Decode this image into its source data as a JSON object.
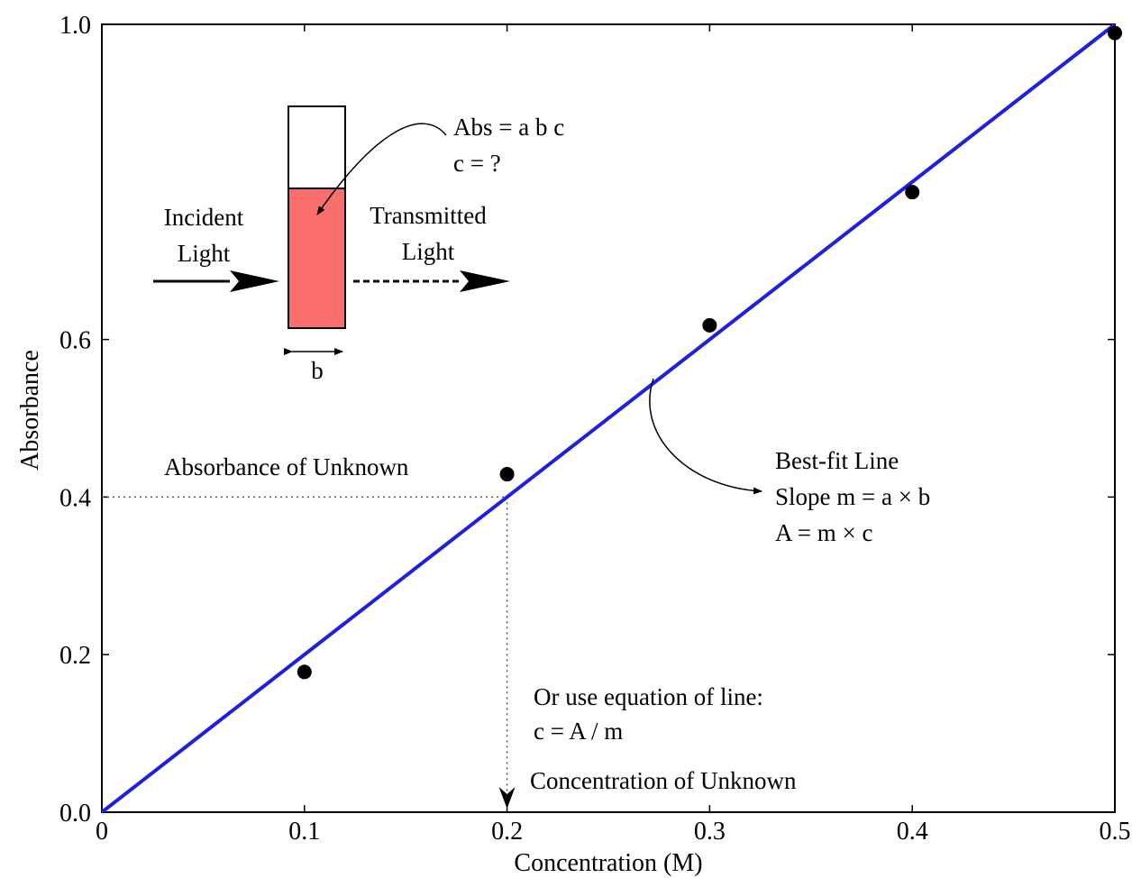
{
  "chart_data": {
    "type": "scatter",
    "x_label": "Concentration (M)",
    "y_label": "Absorbance",
    "xlim": [
      0,
      0.5
    ],
    "ylim": [
      0,
      1.0
    ],
    "xticks": [
      0,
      0.1,
      0.2,
      0.3,
      0.4,
      0.5
    ],
    "yticks": [
      {
        "value": 0,
        "label": "0.0"
      },
      0.2,
      0.4,
      0.6,
      {
        "value": 1.0,
        "label": "1.0"
      }
    ],
    "series": [
      {
        "type": "scatter",
        "color": "#000000",
        "x": [
          0.1,
          0.2,
          0.3,
          0.4,
          0.5
        ],
        "values": [
          0.178,
          0.429,
          0.618,
          0.787,
          0.989
        ]
      },
      {
        "type": "line",
        "color": "#1f1fe0",
        "x": [
          0,
          0.5
        ],
        "values": [
          0,
          1.0
        ]
      }
    ],
    "unknown": {
      "x": 0.2,
      "y": 0.4
    },
    "annotations": [
      "Abs = a b c",
      "c = ?",
      "Incident",
      "Light",
      "Transmitted",
      "Light",
      "b",
      "Absorbance of Unknown",
      "Best-fit Line",
      "Slope m = a × b",
      "A = m × c",
      "Or use equation of line:",
      "c = A / m",
      "Concentration of Unknown"
    ]
  }
}
